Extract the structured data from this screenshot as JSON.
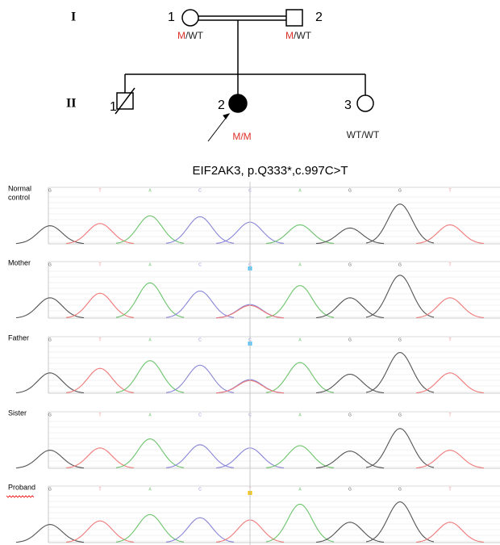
{
  "pedigree": {
    "generations": [
      "I",
      "II"
    ],
    "individuals": [
      {
        "number": "1",
        "genotype": [
          {
            "text": "M",
            "mutant": true
          },
          {
            "text": "/WT",
            "mutant": false
          }
        ]
      },
      {
        "number": "2",
        "genotype": [
          {
            "text": "M",
            "mutant": true
          },
          {
            "text": "/WT",
            "mutant": false
          }
        ]
      },
      {
        "number": "1",
        "genotype": []
      },
      {
        "number": "2",
        "genotype": [
          {
            "text": "M/M",
            "mutant": true
          }
        ]
      },
      {
        "number": "3",
        "genotype": [
          {
            "text": "WT/WT",
            "mutant": false
          }
        ]
      }
    ]
  },
  "title": "EIF2AK3,  p.Q333*,c.997C>T",
  "tracks": [
    {
      "label_lines": [
        "Normal",
        "control"
      ],
      "bases": [
        "G",
        "T",
        "A",
        "C",
        "C",
        "A",
        "G",
        "G",
        "T"
      ],
      "peaks": [
        0.4,
        0.45,
        0.62,
        0.6,
        0.48,
        0.42,
        0.35,
        0.88,
        0.42
      ],
      "extra_peaks": []
    },
    {
      "label_lines": [
        "Mother"
      ],
      "bases": [
        "G",
        "T",
        "A",
        "C",
        "C",
        "A",
        "G",
        "G",
        "T"
      ],
      "peaks": [
        0.45,
        0.55,
        0.78,
        0.6,
        0.3,
        0.72,
        0.45,
        0.95,
        0.45
      ],
      "extra_peaks": [
        {
          "position": 4,
          "base": "T",
          "height": 0.28
        }
      ],
      "marker": "#4fc3f7"
    },
    {
      "label_lines": [
        "Father"
      ],
      "bases": [
        "G",
        "T",
        "A",
        "C",
        "C",
        "A",
        "G",
        "G",
        "T"
      ],
      "peaks": [
        0.45,
        0.55,
        0.72,
        0.62,
        0.3,
        0.68,
        0.42,
        0.9,
        0.45
      ],
      "extra_peaks": [
        {
          "position": 4,
          "base": "T",
          "height": 0.28
        }
      ],
      "marker": "#4fc3f7"
    },
    {
      "label_lines": [
        "Sister"
      ],
      "bases": [
        "G",
        "T",
        "A",
        "C",
        "C",
        "A",
        "G",
        "G",
        "T"
      ],
      "peaks": [
        0.4,
        0.45,
        0.65,
        0.52,
        0.45,
        0.5,
        0.38,
        0.88,
        0.4
      ],
      "extra_peaks": []
    },
    {
      "label_lines": [
        "Proband"
      ],
      "bases": [
        "G",
        "T",
        "A",
        "C",
        "T",
        "A",
        "G",
        "G",
        "T"
      ],
      "peaks": [
        0.4,
        0.48,
        0.62,
        0.55,
        0.5,
        0.85,
        0.45,
        0.9,
        0.45
      ],
      "extra_peaks": [],
      "marker": "#f2c200"
    }
  ]
}
